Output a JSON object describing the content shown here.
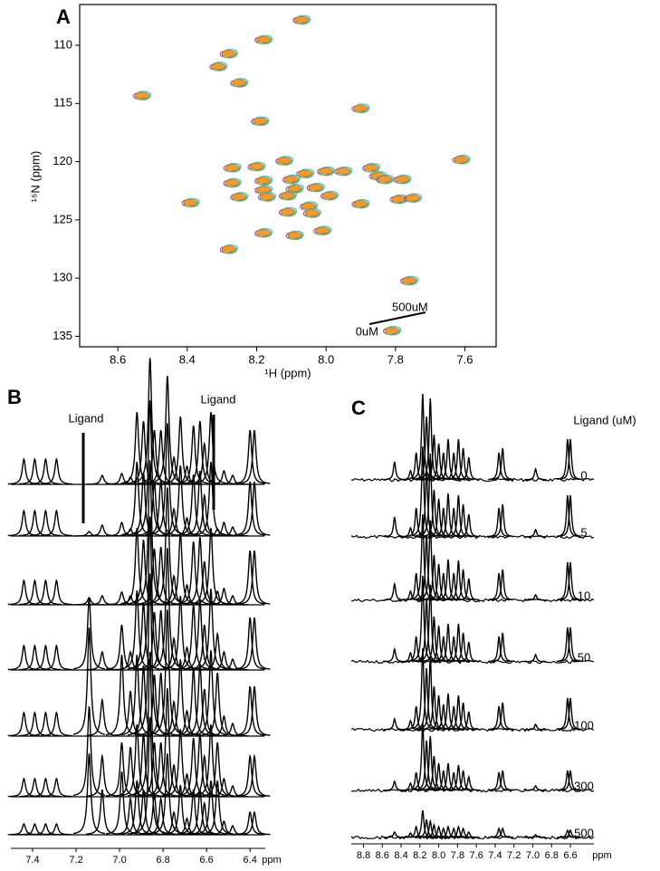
{
  "chart_data": [
    {
      "type": "contour",
      "label": "A",
      "x_label": "¹H (ppm)",
      "y_label": "¹⁵N (ppm)",
      "xlim": [
        8.71,
        7.51
      ],
      "ylim": [
        135.9,
        106.5
      ],
      "xticks": [
        8.6,
        8.4,
        8.2,
        {
          "value": 8,
          "label": "8.0"
        },
        7.8,
        7.6
      ],
      "yticks": [
        110,
        115,
        120,
        125,
        130,
        135
      ],
      "color": "#f39a2b",
      "outline_colors": [
        "#9b4fd0",
        "#2cc3c8",
        "#5cc25c"
      ],
      "annotations": [
        "0uM",
        "500uM"
      ],
      "x": [
        8.07,
        8.18,
        8.28,
        8.31,
        8.25,
        8.53,
        7.9,
        8.19,
        7.61,
        8.12,
        8.27,
        8.2,
        7.87,
        7.95,
        8.0,
        8.06,
        7.85,
        7.83,
        7.78,
        8.18,
        8.1,
        8.27,
        8.03,
        8.18,
        8.09,
        8.11,
        7.99,
        8.25,
        8.17,
        7.79,
        7.75,
        8.39,
        7.9,
        8.05,
        8.04,
        8.11,
        8.18,
        8.01,
        8.09,
        8.28,
        7.76,
        7.81
      ],
      "values": [
        107.8,
        109.5,
        110.7,
        111.8,
        113.2,
        114.3,
        115.4,
        116.5,
        119.8,
        119.9,
        120.5,
        120.4,
        120.5,
        120.8,
        120.8,
        121.0,
        121.2,
        121.5,
        121.5,
        121.6,
        121.5,
        121.8,
        122.2,
        122.4,
        122.3,
        122.9,
        122.9,
        123.0,
        123.0,
        123.2,
        123.1,
        123.5,
        123.6,
        123.8,
        124.4,
        124.3,
        126.1,
        125.9,
        126.3,
        127.5,
        130.2,
        134.5
      ]
    },
    {
      "type": "stacked-spectra",
      "label": "B",
      "x_label": "ppm",
      "xlim": [
        7.5,
        6.33
      ],
      "xticks": [
        7.4,
        7.2,
        {
          "value": 7,
          "label": "7.0"
        },
        6.8,
        6.6,
        6.4
      ],
      "annotations": [
        "Ligand",
        "Ligand"
      ],
      "color": "#000000",
      "x": [
        7.44,
        7.39,
        7.34,
        7.29,
        7.14,
        7.08,
        6.99,
        6.95,
        6.92,
        6.89,
        6.86,
        6.84,
        6.81,
        6.78,
        6.75,
        6.72,
        6.69,
        6.66,
        6.63,
        6.61,
        6.58,
        6.55,
        6.52,
        6.48,
        6.4,
        6.38
      ],
      "series": [
        {
          "values": [
            28,
            28,
            28,
            28,
            null,
            10,
            12,
            8,
            80,
            70,
            140,
            60,
            60,
            120,
            30,
            75,
            20,
            65,
            70,
            45,
            80,
            null,
            15,
            10,
            60,
            60
          ]
        },
        {
          "values": [
            28,
            28,
            28,
            28,
            5,
            12,
            15,
            8,
            82,
            70,
            150,
            60,
            62,
            125,
            30,
            78,
            20,
            68,
            72,
            45,
            82,
            8,
            15,
            10,
            60,
            60
          ]
        },
        {
          "values": [
            27,
            27,
            27,
            27,
            8,
            10,
            14,
            10,
            85,
            72,
            160,
            62,
            64,
            130,
            32,
            80,
            22,
            70,
            75,
            48,
            85,
            15,
            18,
            10,
            60,
            60
          ]
        },
        {
          "values": [
            27,
            27,
            27,
            27,
            80,
            20,
            50,
            20,
            88,
            75,
            170,
            64,
            66,
            135,
            35,
            82,
            25,
            72,
            78,
            50,
            90,
            40,
            20,
            12,
            58,
            58
          ]
        },
        {
          "values": [
            26,
            26,
            26,
            26,
            120,
            40,
            90,
            50,
            90,
            78,
            180,
            68,
            70,
            140,
            38,
            85,
            28,
            75,
            80,
            52,
            95,
            70,
            22,
            14,
            55,
            55
          ]
        },
        {
          "values": [
            20,
            20,
            20,
            20,
            100,
            45,
            60,
            55,
            80,
            70,
            160,
            60,
            60,
            120,
            35,
            75,
            25,
            65,
            70,
            45,
            80,
            60,
            20,
            12,
            45,
            45
          ]
        },
        {
          "values": [
            12,
            12,
            12,
            12,
            90,
            50,
            70,
            40,
            60,
            50,
            130,
            45,
            40,
            90,
            25,
            55,
            18,
            50,
            50,
            35,
            60,
            60,
            15,
            10,
            25,
            25
          ]
        }
      ]
    },
    {
      "type": "stacked-spectra",
      "label": "C",
      "x_label": "ppm",
      "legend_title": "Ligand (uM)",
      "xlim": [
        8.93,
        6.35
      ],
      "xticks": [
        8.8,
        8.6,
        8.4,
        8.2,
        {
          "value": 8,
          "label": "8.0"
        },
        7.8,
        7.6,
        7.4,
        7.2,
        {
          "value": 7,
          "label": "7.0"
        },
        6.8,
        6.6
      ],
      "color": "#000000",
      "x": [
        8.47,
        8.3,
        8.24,
        8.17,
        8.13,
        8.09,
        8.05,
        8.0,
        7.95,
        7.9,
        7.84,
        7.79,
        7.74,
        7.68,
        7.36,
        7.32,
        6.97,
        6.63,
        6.6
      ],
      "series": [
        {
          "name": "0",
          "values": [
            20,
            10,
            30,
            95,
            70,
            90,
            50,
            40,
            30,
            45,
            30,
            45,
            35,
            25,
            30,
            35,
            12,
            45,
            45
          ]
        },
        {
          "name": "5",
          "values": [
            22,
            10,
            32,
            100,
            75,
            92,
            52,
            42,
            32,
            48,
            32,
            46,
            36,
            25,
            32,
            36,
            8,
            46,
            46
          ]
        },
        {
          "name": "10",
          "values": [
            18,
            10,
            30,
            95,
            72,
            88,
            50,
            40,
            30,
            45,
            30,
            44,
            34,
            24,
            30,
            34,
            6,
            42,
            42
          ]
        },
        {
          "name": "50",
          "values": [
            14,
            10,
            28,
            95,
            70,
            85,
            50,
            40,
            28,
            42,
            28,
            42,
            32,
            22,
            28,
            32,
            8,
            38,
            38
          ]
        },
        {
          "name": "100",
          "values": [
            12,
            10,
            26,
            90,
            68,
            80,
            48,
            38,
            28,
            40,
            26,
            38,
            30,
            20,
            26,
            30,
            6,
            35,
            35
          ]
        },
        {
          "name": "300",
          "values": [
            10,
            8,
            20,
            75,
            55,
            60,
            38,
            30,
            22,
            30,
            20,
            28,
            22,
            15,
            20,
            22,
            5,
            22,
            22
          ]
        },
        {
          "name": "500",
          "values": [
            6,
            5,
            12,
            30,
            20,
            18,
            14,
            12,
            10,
            12,
            10,
            12,
            10,
            6,
            10,
            10,
            3,
            8,
            8
          ]
        }
      ]
    }
  ]
}
